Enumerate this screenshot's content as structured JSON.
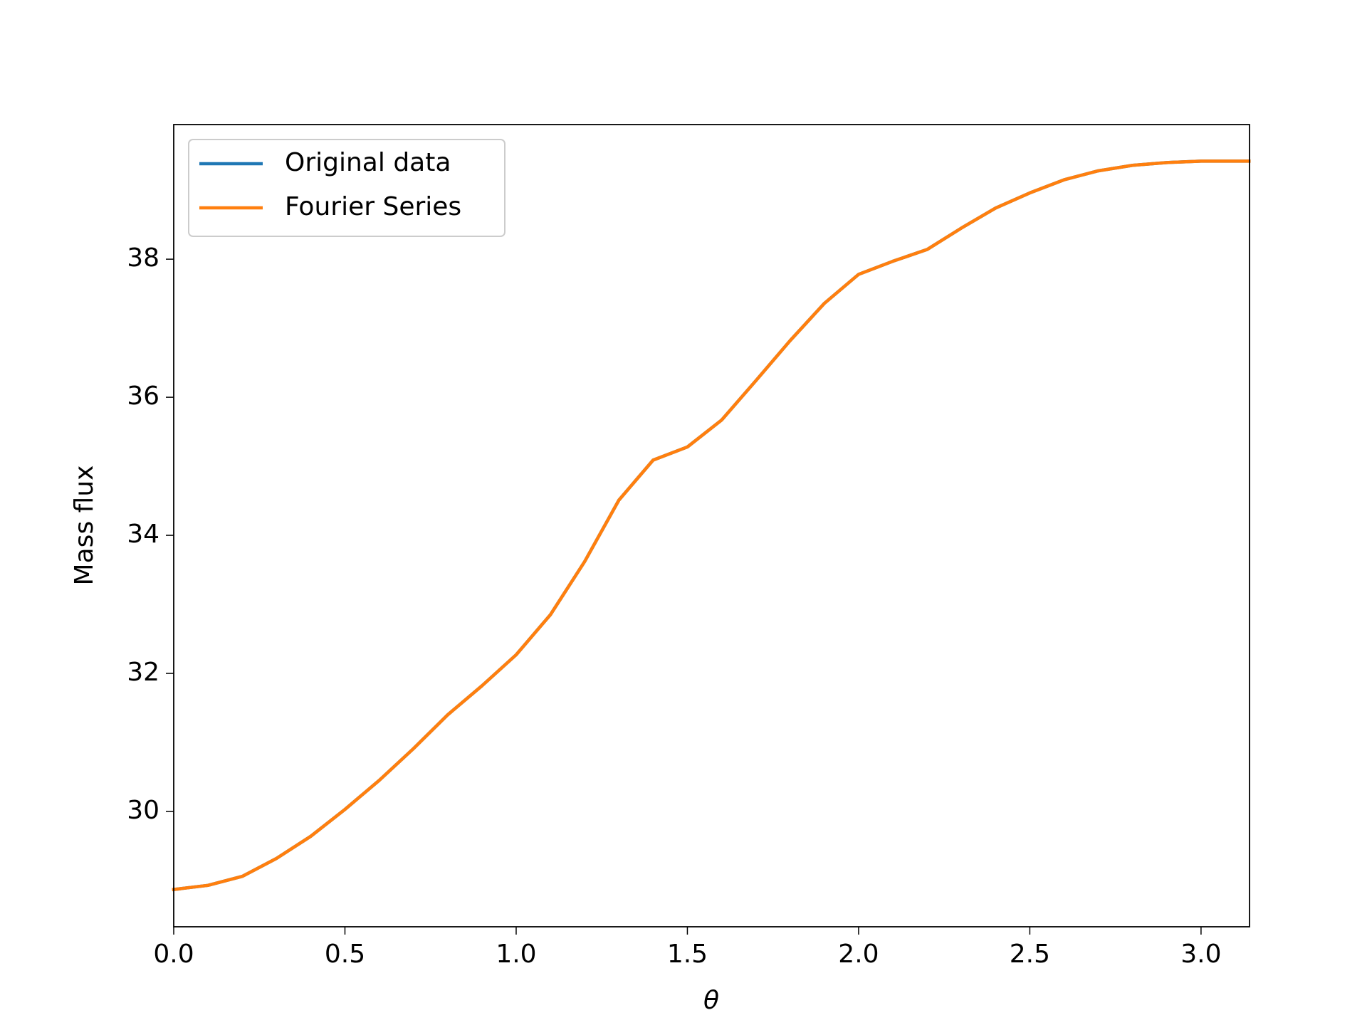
{
  "chart_data": {
    "type": "line",
    "xlabel": "θ",
    "ylabel": "Mass flux",
    "x": [
      0,
      0.1,
      0.2,
      0.3,
      0.4,
      0.5,
      0.6,
      0.7,
      0.8,
      0.9,
      1.0,
      1.1,
      1.2,
      1.3,
      1.4,
      1.5,
      1.6,
      1.7,
      1.8,
      1.9,
      2.0,
      2.1,
      2.2,
      2.3,
      2.4,
      2.5,
      2.6,
      2.7,
      2.8,
      2.9,
      3.0,
      3.14
    ],
    "series": [
      {
        "name": "Original data",
        "color": "#1f77b4",
        "values": [
          28.87,
          28.93,
          29.06,
          29.32,
          29.64,
          30.03,
          30.45,
          30.91,
          31.4,
          31.82,
          32.27,
          32.85,
          33.62,
          34.51,
          35.09,
          35.28,
          35.67,
          36.24,
          36.82,
          37.36,
          37.78,
          37.97,
          38.14,
          38.45,
          38.74,
          38.96,
          39.15,
          39.28,
          39.36,
          39.4,
          39.42,
          39.42
        ]
      },
      {
        "name": "Fourier Series",
        "color": "#ff7f0e",
        "values": [
          28.87,
          28.93,
          29.06,
          29.32,
          29.64,
          30.03,
          30.45,
          30.91,
          31.4,
          31.82,
          32.27,
          32.85,
          33.62,
          34.51,
          35.09,
          35.28,
          35.67,
          36.24,
          36.82,
          37.36,
          37.78,
          37.97,
          38.14,
          38.45,
          38.74,
          38.96,
          39.15,
          39.28,
          39.36,
          39.4,
          39.42,
          39.42
        ]
      }
    ],
    "xlim": [
      0,
      3.1416
    ],
    "ylim": [
      28.33,
      39.95
    ],
    "xticks": [
      {
        "value": 0,
        "label": "0.0"
      },
      {
        "value": 0.5,
        "label": "0.5"
      },
      {
        "value": 1,
        "label": "1.0"
      },
      {
        "value": 1.5,
        "label": "1.5"
      },
      {
        "value": 2,
        "label": "2.0"
      },
      {
        "value": 2.5,
        "label": "2.5"
      },
      {
        "value": 3,
        "label": "3.0"
      }
    ],
    "yticks": [
      30,
      32,
      34,
      36,
      38
    ],
    "grid": false,
    "legend": "upper left"
  }
}
